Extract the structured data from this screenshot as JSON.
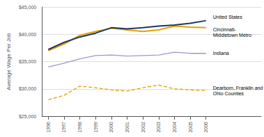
{
  "chart_data": {
    "type": "line",
    "ylabel": "Average Wage Per Job",
    "x": [
      1996,
      1997,
      1998,
      1999,
      2000,
      2001,
      2002,
      2003,
      2004,
      2005,
      2006
    ],
    "series": [
      {
        "name": "United States",
        "color": "#1a3668",
        "line_style": "solid",
        "values": [
          37200,
          38500,
          39500,
          40200,
          41200,
          41000,
          41200,
          41500,
          41700,
          42000,
          42500
        ]
      },
      {
        "name": "Cincinnati-\nMiddletown Metro",
        "color": "#e8a000",
        "line_style": "solid",
        "values": [
          37000,
          38200,
          39800,
          40500,
          41100,
          40800,
          40500,
          40800,
          41500,
          41300,
          41200
        ]
      },
      {
        "name": "Indiana",
        "color": "#9999cc",
        "line_style": "solid",
        "values": [
          34000,
          34700,
          35500,
          36100,
          36200,
          36000,
          36100,
          36200,
          36700,
          36500,
          36500
        ]
      },
      {
        "name": "Dearborn, Franklin and\nOhio Counties",
        "color": "#e8a000",
        "line_style": "dashed",
        "values": [
          28000,
          28800,
          30500,
          30200,
          29800,
          29600,
          30200,
          30700,
          30000,
          29800,
          29700
        ]
      }
    ],
    "xlim": [
      1995.6,
      2009.5
    ],
    "xticks": [
      1996,
      1997,
      1998,
      1999,
      2000,
      2001,
      2002,
      2003,
      2004,
      2005,
      2006
    ],
    "ylim": [
      25000,
      45000
    ],
    "yticks": [
      {
        "value": 25000,
        "label": "$25,000"
      },
      {
        "value": 30000,
        "label": "$30,000"
      },
      {
        "value": 35000,
        "label": "$35,000"
      },
      {
        "value": 40000,
        "label": "$40,000"
      },
      {
        "value": 45000,
        "label": "$45,000"
      }
    ],
    "grid": true
  }
}
